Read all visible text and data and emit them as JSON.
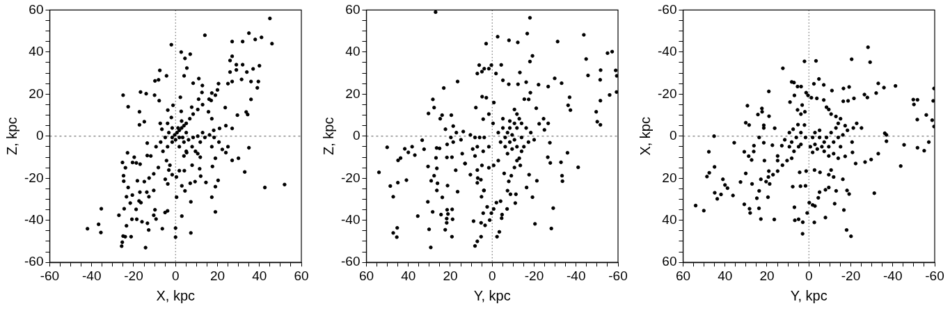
{
  "chart_data": [
    {
      "type": "scatter",
      "xlabel": "X, kpc",
      "ylabel": "Z, kpc",
      "xlim": [
        -60,
        60
      ],
      "ylim": [
        -60,
        60
      ],
      "xticks": [
        -60,
        {
          "value": -55,
          "label": null
        },
        {
          "value": -50,
          "label": null
        },
        {
          "value": -45,
          "label": null
        },
        -40,
        {
          "value": -35,
          "label": null
        },
        {
          "value": -30,
          "label": null
        },
        {
          "value": -25,
          "label": null
        },
        -20,
        {
          "value": -15,
          "label": null
        },
        {
          "value": -10,
          "label": null
        },
        {
          "value": -5,
          "label": null
        },
        0,
        {
          "value": 5,
          "label": null
        },
        {
          "value": 10,
          "label": null
        },
        {
          "value": 15,
          "label": null
        },
        20,
        {
          "value": 25,
          "label": null
        },
        {
          "value": 30,
          "label": null
        },
        {
          "value": 35,
          "label": null
        },
        40,
        {
          "value": 45,
          "label": null
        },
        {
          "value": 50,
          "label": null
        },
        {
          "value": 55,
          "label": null
        },
        60
      ],
      "yticks": [
        -60,
        {
          "value": -55,
          "label": null
        },
        {
          "value": -50,
          "label": null
        },
        {
          "value": -45,
          "label": null
        },
        -40,
        {
          "value": -35,
          "label": null
        },
        {
          "value": -30,
          "label": null
        },
        {
          "value": -25,
          "label": null
        },
        -20,
        {
          "value": -15,
          "label": null
        },
        {
          "value": -10,
          "label": null
        },
        {
          "value": -5,
          "label": null
        },
        0,
        {
          "value": 5,
          "label": null
        },
        {
          "value": 10,
          "label": null
        },
        {
          "value": 15,
          "label": null
        },
        20,
        {
          "value": 25,
          "label": null
        },
        {
          "value": 30,
          "label": null
        },
        {
          "value": 35,
          "label": null
        },
        40,
        {
          "value": 45,
          "label": null
        },
        {
          "value": 50,
          "label": null
        },
        {
          "value": 55,
          "label": null
        },
        60
      ],
      "grid": false,
      "legend": false,
      "marker": "circle",
      "ref_lines": [
        {
          "axis": "x",
          "value": 0,
          "color": "#555555",
          "line_style": "dotted"
        },
        {
          "axis": "y",
          "value": 0,
          "color": "#555555",
          "line_style": "dashed"
        }
      ],
      "series": [
        {
          "color": "#000000",
          "x": [
            45,
            46,
            41,
            35,
            38,
            32,
            27,
            14,
            -2,
            2.7,
            7,
            4.5,
            27,
            26,
            29,
            32,
            40,
            37,
            34,
            31.5,
            36,
            39.5,
            39,
            36,
            29,
            26,
            27,
            25,
            20.5,
            20,
            19,
            17,
            23.7,
            29.5,
            33.7,
            34.4,
            35,
            33,
            42.6,
            52,
            27,
            30,
            27,
            24,
            25,
            20.7,
            19,
            17.6,
            20.3,
            19,
            17.3,
            19,
            14.5,
            12,
            11.5,
            9.3,
            7,
            7.3,
            7.3,
            3,
            3,
            4.5,
            0.5,
            0,
            0,
            -3.8,
            -5,
            -6.3,
            -14.3,
            -12.8,
            -13.4,
            -9.3,
            -10.4,
            -9.8,
            -16,
            -18.5,
            -18.8,
            -20.8,
            -23.4,
            -24,
            -21.2,
            -25,
            -25.4,
            -25.7,
            -27,
            -35.4,
            -36.7,
            -35.6,
            -42,
            -24.5,
            -21.6,
            -23.4,
            -20.6,
            -17.4,
            -16.5,
            -17,
            -13.7,
            -10.4,
            -12.7,
            -22.6,
            -24.7,
            -24.8,
            -18.2,
            -14.9,
            -12.6,
            -10.4,
            -8.2,
            -25.3,
            -23.9,
            -22.9,
            -19.7,
            -20.5,
            -18.7,
            -16.9,
            -13.5,
            -13.5,
            -11.8,
            -9.3,
            -7.1,
            -4.9,
            -3.2,
            -1.6,
            -0.4,
            0.7,
            1.8,
            2.9,
            4,
            5.1,
            6.8,
            8.4,
            10.6,
            12.9,
            -1.6,
            -3.8,
            -6,
            -4.3,
            -2.7,
            -1.6,
            -3.2,
            1.8,
            4,
            6.2,
            8.4,
            10.6,
            12.9,
            14,
            16.2,
            18.4,
            5.1,
            7.9,
            11.8,
            2.9,
            1.8,
            0,
            1.2,
            5.1,
            3.4,
            -1.6,
            -6.5,
            -7.3,
            -3.8,
            -2,
            -1.2,
            -3.7,
            2.7,
            2.3,
            -7.5,
            -4.3,
            -8.1,
            -9.8,
            -7.8,
            -10,
            -14,
            -16.7,
            -25,
            -22.6,
            -17.2,
            -17.2,
            -14.9,
            5.4,
            4.1,
            11.1,
            8.4,
            12.8,
            12.6,
            11,
            16,
            17.3,
            15.7,
            17.3,
            7.7,
            18.2,
            21,
            17.3,
            22.3,
            24,
            10.6,
            11.8,
            4,
            7.9,
            4.2,
            1.8,
            0.4,
            -4.9,
            -3.7,
            5.3,
            9.5
          ],
          "values": [
            56,
            44,
            47,
            49,
            46,
            45,
            45,
            48,
            43.5,
            40,
            39,
            37,
            38,
            36,
            34,
            34,
            33.5,
            32,
            30.5,
            27,
            26,
            26,
            23,
            17.5,
            31.5,
            30.5,
            26,
            25,
            25,
            22,
            19.5,
            17,
            13.6,
            10,
            11.5,
            10.3,
            -5.5,
            -17,
            -24.4,
            -23,
            -11.5,
            -10.5,
            3.7,
            5,
            -5,
            -2.8,
            -10.5,
            -14.4,
            -21,
            -24,
            -29,
            -36,
            -22,
            -19,
            -15.5,
            -21.6,
            -22.4,
            -31.2,
            -46,
            -38,
            -23.6,
            -26,
            -29,
            -43.7,
            -48,
            -35.5,
            -36.3,
            -44,
            -53,
            -44.6,
            -41.4,
            -39.4,
            -37.6,
            -35,
            -40.7,
            -39.5,
            -34.8,
            -39.5,
            -42.6,
            -47.8,
            -47.8,
            -47.5,
            -50.4,
            -52.3,
            -37.6,
            -34.5,
            -41.9,
            -45.8,
            -44,
            -34.5,
            -31.8,
            -28.8,
            -28,
            -30.8,
            -31.6,
            -26.6,
            -26.6,
            -25.8,
            -28.8,
            -24.4,
            -21.4,
            -18.8,
            -21.2,
            -21.6,
            -19.9,
            -17.9,
            -14.9,
            -12.5,
            -15,
            -7.9,
            -10,
            -12.5,
            -12.7,
            -13.3,
            -3.3,
            -9.2,
            -9.4,
            -5,
            -2.8,
            -0.6,
            1.7,
            -0.6,
            0.6,
            1.7,
            2.8,
            3.9,
            5,
            6.1,
            8.3,
            10.5,
            12.7,
            15,
            -2.8,
            -5,
            -7.2,
            -11.6,
            -13.8,
            -18.3,
            -16.1,
            -5,
            -2.8,
            -1.7,
            -0.6,
            0,
            1.7,
            -0.6,
            0.6,
            -0.6,
            -7.2,
            -5,
            -2.8,
            7.2,
            -0.6,
            -1.7,
            3.9,
            1.7,
            -0.6,
            3.9,
            3.3,
            6.1,
            6.1,
            8.9,
            14.7,
            12.4,
            11.8,
            18.5,
            31.3,
            28.7,
            26.8,
            26.3,
            16.9,
            19.5,
            20.2,
            21,
            19.5,
            14,
            11.6,
            5.4,
            6.9,
            32.4,
            28.7,
            27.4,
            25.2,
            24.1,
            20.8,
            17.6,
            17.6,
            20.5,
            11.6,
            8.3,
            13.8,
            2.8,
            3.7,
            -5,
            -6.3,
            -7.8,
            -8.3,
            -10,
            -9.4,
            -13.8,
            -16.4,
            -16.4,
            -19.4,
            -20.5,
            -22.7,
            -7.8,
            -7.2
          ]
        }
      ]
    },
    {
      "type": "scatter",
      "xlabel": "Y, kpc",
      "ylabel": "Z, kpc",
      "xlim": [
        60,
        -60
      ],
      "ylim": [
        -60,
        60
      ],
      "xticks": [
        -60,
        {
          "value": -55,
          "label": null
        },
        {
          "value": -50,
          "label": null
        },
        {
          "value": -45,
          "label": null
        },
        -40,
        {
          "value": -35,
          "label": null
        },
        {
          "value": -30,
          "label": null
        },
        {
          "value": -25,
          "label": null
        },
        -20,
        {
          "value": -15,
          "label": null
        },
        {
          "value": -10,
          "label": null
        },
        {
          "value": -5,
          "label": null
        },
        0,
        {
          "value": 5,
          "label": null
        },
        {
          "value": 10,
          "label": null
        },
        {
          "value": 15,
          "label": null
        },
        20,
        {
          "value": 25,
          "label": null
        },
        {
          "value": 30,
          "label": null
        },
        {
          "value": 35,
          "label": null
        },
        40,
        {
          "value": 45,
          "label": null
        },
        {
          "value": 50,
          "label": null
        },
        {
          "value": 55,
          "label": null
        },
        60
      ],
      "yticks": [
        -60,
        {
          "value": -55,
          "label": null
        },
        {
          "value": -50,
          "label": null
        },
        {
          "value": -45,
          "label": null
        },
        -40,
        {
          "value": -35,
          "label": null
        },
        {
          "value": -30,
          "label": null
        },
        {
          "value": -25,
          "label": null
        },
        -20,
        {
          "value": -15,
          "label": null
        },
        {
          "value": -10,
          "label": null
        },
        {
          "value": -5,
          "label": null
        },
        0,
        {
          "value": 5,
          "label": null
        },
        {
          "value": 10,
          "label": null
        },
        {
          "value": 15,
          "label": null
        },
        20,
        {
          "value": 25,
          "label": null
        },
        {
          "value": 30,
          "label": null
        },
        {
          "value": 35,
          "label": null
        },
        40,
        {
          "value": 45,
          "label": null
        },
        {
          "value": 50,
          "label": null
        },
        {
          "value": 55,
          "label": null
        },
        60
      ],
      "grid": false,
      "legend": false,
      "marker": "circle",
      "ref_lines": [
        {
          "axis": "x",
          "value": 0,
          "color": "#555555",
          "line_style": "dotted"
        },
        {
          "axis": "y",
          "value": 0,
          "color": "#555555",
          "line_style": "dashed"
        }
      ],
      "series": [
        {
          "color": "#000000",
          "x": [
            27,
            -18,
            -16.7,
            -2.6,
            -8,
            -12.2,
            2.9,
            -31.2,
            -43.7,
            -19.2,
            -18,
            -44.8,
            -45.7,
            -51.7,
            -51.5,
            -55,
            -57.2,
            -58.9,
            -59.4,
            -59.3,
            -56,
            -51.6,
            -49.6,
            -50.1,
            -51.6,
            -29.8,
            -33.1,
            -36.9,
            -36.2,
            -37.3,
            -35.9,
            -41,
            -33.3,
            -33.5,
            -32.8,
            -29.1,
            -28.2,
            -20.4,
            -19.2,
            -21.3,
            -16.4,
            -17.6,
            -27.7,
            -26.5,
            -27.5,
            -26.7,
            -24.5,
            -24.9,
            -22.4,
            -21,
            -22.1,
            -26.7,
            -16.2,
            -18.2,
            -17.4,
            -15.3,
            -13.2,
            -12.3,
            -7.9,
            -5.1,
            -4.3,
            0.4,
            1.6,
            -1.8,
            3.8,
            6.2,
            7.1,
            4.9,
            2.8,
            4.8,
            -0.8,
            -0.4,
            1.6,
            4.3,
            7.8,
            16.5,
            23.1,
            28.3,
            27.7,
            30.4,
            23.9,
            24.8,
            19.5,
            18.6,
            22.3,
            17.1,
            19.7,
            18.6,
            13.8,
            14.9,
            10.4,
            8.2,
            9.3,
            6,
            7.1,
            3.8,
            4.3,
            1.6,
            8.2,
            7.1,
            4.9,
            1.6,
            -0.7,
            -2.9,
            10.4,
            6.9,
            5.4,
            7.1,
            4,
            13,
            14.3,
            21.6,
            21.5,
            25.1,
            26.5,
            32.5,
            33.4,
            36.9,
            38.2,
            40,
            41.7,
            43.7,
            44.9,
            50.1,
            54,
            48.6,
            45,
            47.2,
            40.9,
            47.2,
            45.5,
            45.3,
            35.5,
            30.7,
            30.1,
            29.3,
            28.4,
            29.1,
            27.7,
            26.1,
            26.4,
            26.4,
            26.8,
            30.6,
            23.8,
            24.4,
            22.4,
            21.7,
            21.5,
            21.1,
            21.7,
            19.1,
            18.9,
            19.2,
            16.5,
            17.4,
            21.3,
            19.2,
            12.9,
            8.9,
            8.2,
            7.1,
            5.3,
            5.3,
            3.4,
            4.3,
            3.9,
            5.1,
            2.4,
            1.2,
            0.4,
            -0.7,
            -2.3,
            -3.4,
            -2,
            -4,
            -4.7,
            -4.5,
            -7.1,
            -11,
            -11.3,
            -8.7,
            -5.7,
            -7.3,
            -7.9,
            -9.1,
            -10.6,
            -11.8,
            -12.9,
            -13.4,
            -6.2,
            -7.3,
            -8.4,
            -9.5,
            -10.6,
            -8.4,
            -6.2,
            -4,
            -5.1,
            -11.8,
            -12.9,
            -11.8,
            -10.6,
            -14,
            -15.1,
            -9.5,
            -7.3,
            -14,
            -16.2,
            -18.4,
            -17.3,
            -20,
            -2.9,
            -5.1,
            -8.4,
            -10.6,
            -14,
            -11.8
          ],
          "values": [
            59,
            56.3,
            48.8,
            47.3,
            45.6,
            44.6,
            44,
            45,
            48.2,
            38.2,
            35.5,
            36.7,
            28.9,
            31.4,
            26.8,
            39.5,
            40.2,
            31.3,
            28.7,
            21,
            19.6,
            16.9,
            11.6,
            6.9,
            5.4,
            27.5,
            25.2,
            18.5,
            14.7,
            12.4,
            -7.9,
            -14.8,
            -18.8,
            -21.4,
            -12.4,
            -34.2,
            -43.9,
            -41.7,
            -29,
            -21.2,
            -24.4,
            -18.3,
            -12.7,
            -10,
            -3.1,
            6.1,
            8.3,
            3,
            5.9,
            13.3,
            24.5,
            23.6,
            25.7,
            20.7,
            17.5,
            17.6,
            30.3,
            24.7,
            24.7,
            26.6,
            33.9,
            33.8,
            32.1,
            29.8,
            32.1,
            33.8,
            29.8,
            30.7,
            18.3,
            18.8,
            16,
            6.1,
            10.5,
            8.1,
            13.6,
            26,
            22.9,
            17.5,
            13.6,
            10.8,
            10,
            8.3,
            10,
            4.8,
            3.3,
            1.7,
            -0.6,
            -2.8,
            2.2,
            -1.7,
            0.6,
            -0.6,
            -6.1,
            -0.6,
            -5,
            -0.6,
            -7.2,
            -5,
            -9.4,
            -16.1,
            -13.9,
            -15,
            -13.9,
            -11.6,
            -18.3,
            -19.9,
            -20.7,
            -22.2,
            -25.8,
            -13,
            -8.3,
            -10.1,
            -3.9,
            -5.8,
            -5.6,
            -6.2,
            -1.9,
            -9,
            -5,
            -7.7,
            -6,
            -10.4,
            -11.5,
            -5.3,
            -17.2,
            -23.7,
            -22.1,
            -28.8,
            -20.9,
            -46,
            -48,
            -43.6,
            -38,
            -31.2,
            -44.3,
            -52.9,
            -36,
            -21.2,
            -18.8,
            -22.4,
            -25.8,
            -15.3,
            -10.3,
            -14.4,
            -29.1,
            -37.3,
            -44.5,
            -41.2,
            -35,
            -37,
            -39.2,
            -34.8,
            -39.5,
            -47.8,
            -26.4,
            -16.2,
            -23.5,
            -10,
            -13,
            -40.4,
            -52.2,
            -50,
            -47.8,
            -41.2,
            -42.4,
            -36.6,
            -25.8,
            -28.8,
            -33.6,
            -39.9,
            -36.6,
            -34.6,
            -47.8,
            -45.5,
            -31.6,
            -30.9,
            -37.3,
            -39,
            -34.6,
            -31.8,
            -27.6,
            -27.6,
            -17.7,
            -25.9,
            -21.5,
            -18.8,
            -14.9,
            -11.6,
            -10.5,
            -13.9,
            -0.6,
            1.7,
            3.9,
            0.6,
            -1.7,
            -2.8,
            -5,
            -2.8,
            3.9,
            3.9,
            8.3,
            10.5,
            12.7,
            -0.6,
            -5,
            -6.1,
            -8.3,
            6.1,
            3.9,
            1.7,
            -2.8,
            -1.7,
            1.7,
            8.3,
            7.2,
            6.1,
            -7.2,
            -5
          ]
        }
      ]
    },
    {
      "type": "scatter",
      "xlabel": "Y, kpc",
      "ylabel": "X, kpc",
      "xlim": [
        60,
        -60
      ],
      "ylim": [
        60,
        -60
      ],
      "xticks": [
        -60,
        {
          "value": -55,
          "label": null
        },
        {
          "value": -50,
          "label": null
        },
        {
          "value": -45,
          "label": null
        },
        -40,
        {
          "value": -35,
          "label": null
        },
        {
          "value": -30,
          "label": null
        },
        {
          "value": -25,
          "label": null
        },
        -20,
        {
          "value": -15,
          "label": null
        },
        {
          "value": -10,
          "label": null
        },
        {
          "value": -5,
          "label": null
        },
        0,
        {
          "value": 5,
          "label": null
        },
        {
          "value": 10,
          "label": null
        },
        {
          "value": 15,
          "label": null
        },
        20,
        {
          "value": 25,
          "label": null
        },
        {
          "value": 30,
          "label": null
        },
        {
          "value": 35,
          "label": null
        },
        40,
        {
          "value": 45,
          "label": null
        },
        {
          "value": 50,
          "label": null
        },
        {
          "value": 55,
          "label": null
        },
        60
      ],
      "yticks": [
        -60,
        {
          "value": -55,
          "label": null
        },
        {
          "value": -50,
          "label": null
        },
        {
          "value": -45,
          "label": null
        },
        -40,
        {
          "value": -35,
          "label": null
        },
        {
          "value": -30,
          "label": null
        },
        {
          "value": -25,
          "label": null
        },
        -20,
        {
          "value": -15,
          "label": null
        },
        {
          "value": -10,
          "label": null
        },
        {
          "value": -5,
          "label": null
        },
        0,
        {
          "value": 5,
          "label": null
        },
        {
          "value": 10,
          "label": null
        },
        {
          "value": 15,
          "label": null
        },
        20,
        {
          "value": 25,
          "label": null
        },
        {
          "value": 30,
          "label": null
        },
        {
          "value": 35,
          "label": null
        },
        40,
        {
          "value": 45,
          "label": null
        },
        {
          "value": 50,
          "label": null
        },
        {
          "value": 55,
          "label": null
        },
        60
      ],
      "grid": false,
      "legend": false,
      "marker": "circle",
      "ref_lines": [
        {
          "axis": "x",
          "value": 0,
          "color": "#555555",
          "line_style": "dotted"
        },
        {
          "axis": "y",
          "value": 0,
          "color": "#555555",
          "line_style": "dashed"
        }
      ],
      "series": [
        {
          "color": "#000000",
          "x": [
            -28.2,
            -29.2,
            -20.4,
            -3.4,
            2.1,
            12.4,
            -4.8,
            -2.4,
            -7.1,
            8.2,
            7.1,
            5.4,
            3.7,
            1.3,
            0.4,
            -1.2,
            -3.8,
            -11,
            -16.5,
            -19.2,
            -21.5,
            -16.4,
            -18.7,
            -26.5,
            -27.9,
            -32.1,
            -33.1,
            -35.8,
            -41.3,
            -49.8,
            -51.8,
            -50.1,
            -56,
            -51.7,
            -59.3,
            -58.8,
            -59.7,
            -59.7,
            -57.2,
            -55,
            -51.8,
            -45.4,
            -43.8,
            -37,
            -37,
            -36.2,
            -33.1,
            -29.7,
            -31.2,
            -26.8,
            -25.1,
            -22.8,
            -21.2,
            -20.6,
            -20.8,
            -22.3,
            -17.3,
            -16.2,
            -16.7,
            -18,
            -20.1,
            -19.2,
            -18.2,
            -13,
            -12.3,
            -9.5,
            -7.9,
            -7.9,
            -5.1,
            -4.5,
            -1.8,
            -2.9,
            -0.2,
            0.8,
            2.9,
            4.9,
            6.7,
            3,
            6.9,
            -2.6,
            1.6,
            4,
            7.7,
            1.3,
            4.4,
            -2.7,
            -5.3,
            -10.6,
            -11.8,
            -9.5,
            -1.8,
            -0.7,
            7.1,
            8.2,
            10.4,
            12.6,
            14.9,
            14.9,
            17.1,
            19.3,
            20.4,
            18.7,
            19.5,
            22.9,
            23.7,
            24.8,
            27.1,
            30.1,
            30.8,
            28.3,
            23.8,
            22.9,
            16.5,
            28,
            32.6,
            36.2,
            40,
            38.8,
            41,
            41.9,
            43.7,
            44.9,
            48.6,
            47.5,
            45,
            47.7,
            54,
            50.1,
            45.2,
            35.6,
            30.8,
            28.7,
            26.2,
            26.3,
            27.3,
            21.2,
            21.5,
            21.5,
            21.5,
            23.7,
            24.3,
            22.4,
            22.3,
            29.3,
            28.5,
            30.1,
            19.1,
            19,
            16.3,
            17.4,
            12.9,
            14.9,
            19.1,
            9,
            6.9,
            5.4,
            3.8,
            3.2,
            1.9,
            2.1,
            5.2,
            7.5,
            9.3,
            8.2,
            6,
            3.8,
            4.9,
            9.3,
            11.5,
            3.8,
            1.6,
            -2.9,
            -5.1,
            -7.3,
            -9.5,
            -11.8,
            -8.4,
            -6.2,
            -4,
            -10.6,
            -12.9,
            -14,
            -15.1,
            -12.9,
            -10.6,
            -9.5,
            -8.4,
            -7.1,
            -14,
            -16.2,
            -15.1,
            -11.8,
            -9.5,
            -7.3,
            -17.3,
            -18.4,
            -14,
            -5.1,
            -1.8,
            -2.9
          ],
          "values": [
            -42.3,
            -35.2,
            -36.6,
            -35.8,
            -35.6,
            -32.3,
            -27.2,
            -24.9,
            -24.4,
            -25.8,
            -25.5,
            -23.6,
            -23.6,
            -20.7,
            -19.4,
            -18.3,
            -18,
            -21.7,
            -22.7,
            -23.4,
            -18,
            -16.6,
            -16.8,
            -19.8,
            -18.4,
            -20.5,
            -25.1,
            -23.1,
            -23.9,
            -17.4,
            -17.3,
            -15.1,
            -10.1,
            -7.9,
            -16.8,
            -7.6,
            -4.6,
            -22.7,
            2.8,
            6.9,
            5.5,
            4.1,
            14.2,
            -0.6,
            2.4,
            -1.4,
            8.3,
            11.1,
            27.1,
            12.3,
            -3.9,
            -6.1,
            -3.9,
            2.8,
            7.7,
            13,
            9.6,
            20.5,
            35.1,
            44.6,
            47.6,
            27.5,
            25.8,
            26,
            32.1,
            24.4,
            25.5,
            38.7,
            26.6,
            29.3,
            32.7,
            33.2,
            31.6,
            36.5,
            40.9,
            39.5,
            40,
            46.4,
            33.8,
            41,
            23.6,
            23.8,
            24,
            16.6,
            17.2,
            16.1,
            17.2,
            16.1,
            19.4,
            18.3,
            7.7,
            5,
            7.2,
            10.5,
            11.6,
            13.8,
            11.6,
            16.6,
            18.3,
            19.4,
            21.6,
            22.7,
            29,
            20.5,
            26,
            29.5,
            22.7,
            17.7,
            32.4,
            34.5,
            34.3,
            39.4,
            39.6,
            36.5,
            21.8,
            28.2,
            23.2,
            24.7,
            20.5,
            27.7,
            29.8,
            26.9,
            19.2,
            17.4,
            14.6,
            7.4,
            33,
            35.4,
            0,
            3.1,
            7.4,
            9.5,
            4.5,
            7.3,
            11.3,
            11.6,
            3.1,
            -3.9,
            -5.2,
            0.6,
            -10.3,
            -13.2,
            -11.6,
            -14.5,
            -5.3,
            -6.4,
            -21.3,
            -9.5,
            -3.8,
            4.3,
            4.5,
            9.4,
            16.6,
            -16.2,
            -19.4,
            -12.5,
            -10.5,
            -14.8,
            -11.6,
            -5.3,
            -5.5,
            -3.3,
            -1.7,
            2.8,
            0.6,
            -1.7,
            5,
            5,
            1.7,
            3.9,
            0.6,
            -1.7,
            0.6,
            2.8,
            5,
            2.8,
            0.6,
            5,
            6.1,
            -1.7,
            -3.9,
            -6.1,
            -8.3,
            -9.4,
            -10.5,
            -12.7,
            -13.8,
            -17.2,
            0.6,
            -0.6,
            5,
            8.3,
            9.4,
            7.2,
            -5,
            -2.8,
            10.5,
            -2.8,
            0.6,
            3.9
          ]
        }
      ]
    }
  ]
}
